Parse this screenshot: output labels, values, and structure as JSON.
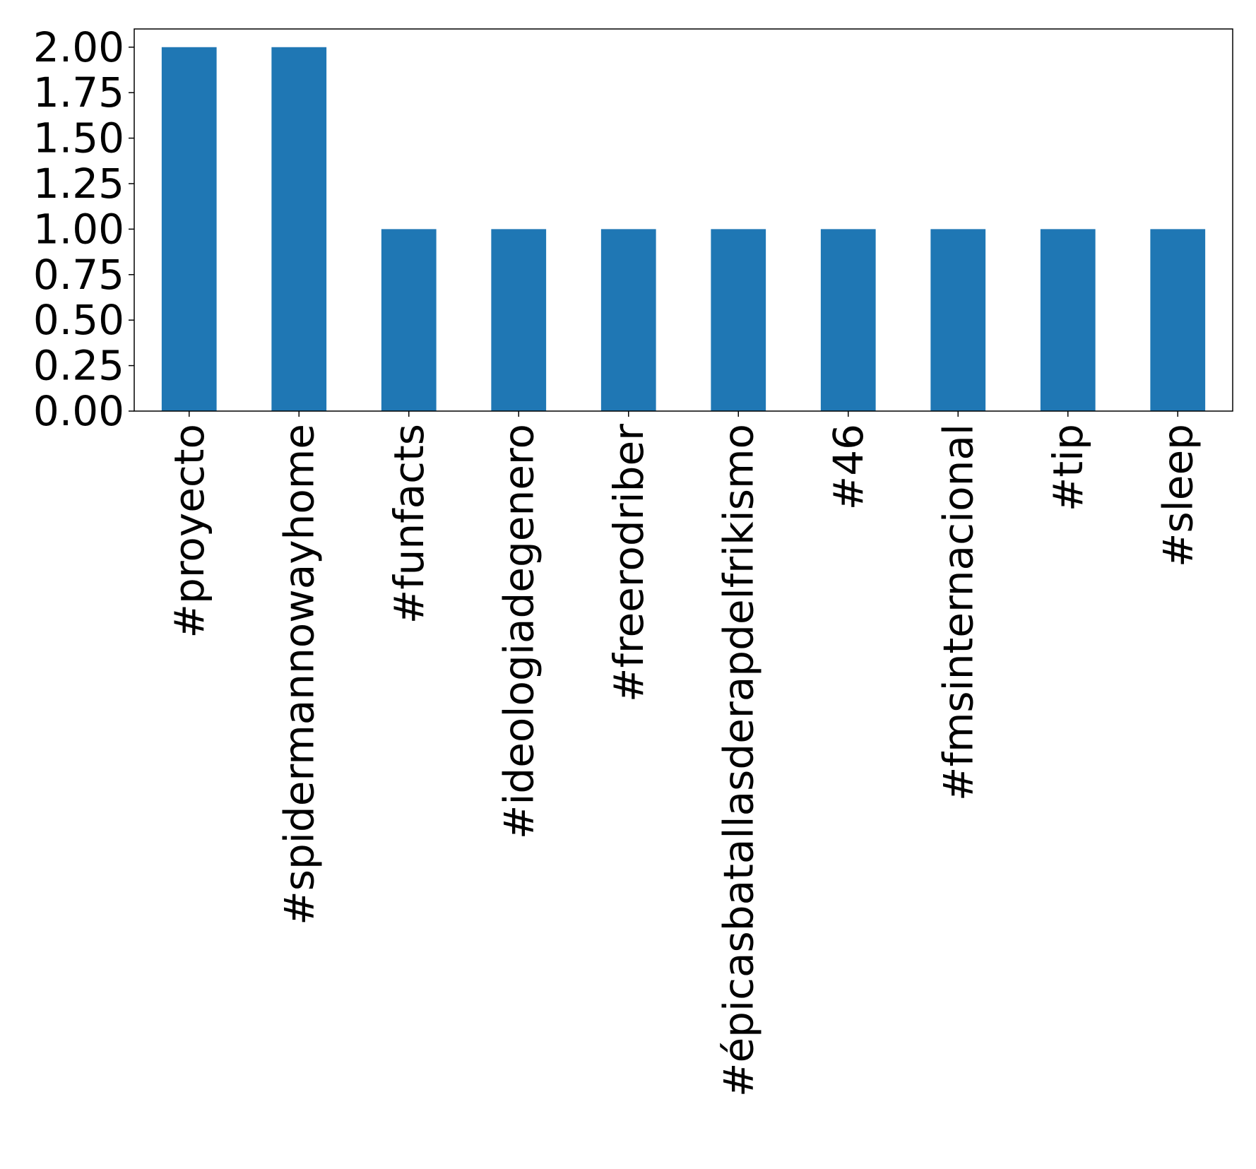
{
  "chart_data": {
    "type": "bar",
    "title": "",
    "xlabel": "",
    "ylabel": "",
    "categories": [
      "#proyecto",
      "#spidermannowayhome",
      "#funfacts",
      "#ideologiadegenero",
      "#freerodriber",
      "#épicasbatallasderapdelfrikismo",
      "#46",
      "#fmsinternacional",
      "#tip",
      "#sleep"
    ],
    "values": [
      2,
      2,
      1,
      1,
      1,
      1,
      1,
      1,
      1,
      1
    ],
    "ylim": [
      0,
      2.1
    ],
    "yticks": [
      "0.00",
      "0.25",
      "0.50",
      "0.75",
      "1.00",
      "1.25",
      "1.50",
      "1.75",
      "2.00"
    ],
    "grid": false,
    "legend": "none",
    "bar_color": "#1f77b4"
  }
}
